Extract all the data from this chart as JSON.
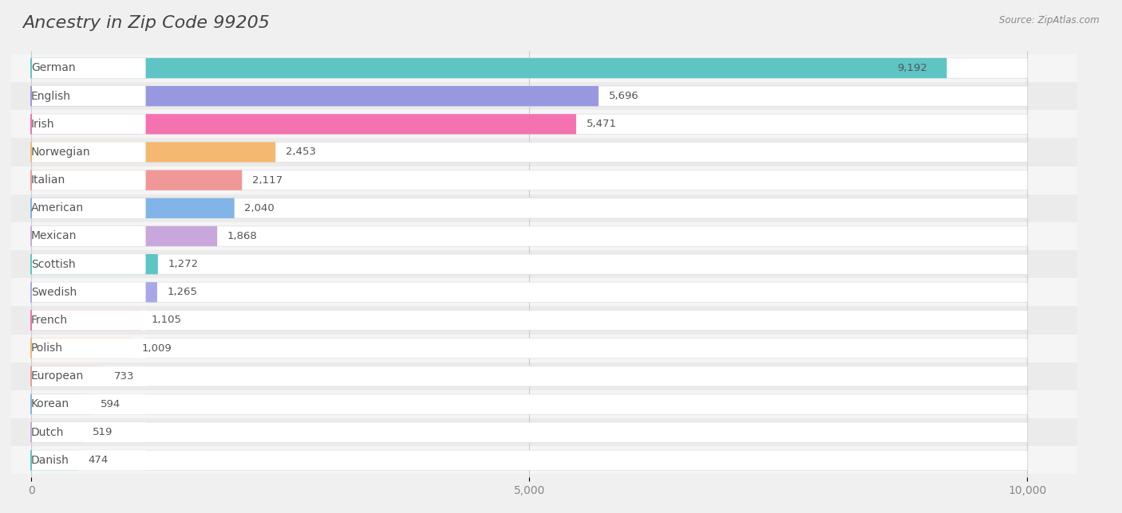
{
  "title": "Ancestry in Zip Code 99205",
  "source": "Source: ZipAtlas.com",
  "categories": [
    "German",
    "English",
    "Irish",
    "Norwegian",
    "Italian",
    "American",
    "Mexican",
    "Scottish",
    "Swedish",
    "French",
    "Polish",
    "European",
    "Korean",
    "Dutch",
    "Danish"
  ],
  "values": [
    9192,
    5696,
    5471,
    2453,
    2117,
    2040,
    1868,
    1272,
    1265,
    1105,
    1009,
    733,
    594,
    519,
    474
  ],
  "bar_colors": [
    "#5ec4c4",
    "#9898e0",
    "#f472b0",
    "#f5b870",
    "#f09898",
    "#82b4e8",
    "#c8a8dc",
    "#5ec4c4",
    "#a8a8e8",
    "#f472b0",
    "#f5b870",
    "#f09898",
    "#82b4e8",
    "#c8a8dc",
    "#5ec4c4"
  ],
  "circle_colors": [
    "#5ec4c4",
    "#9898e0",
    "#f472b0",
    "#f5b870",
    "#f09898",
    "#82b4e8",
    "#c8a8dc",
    "#5ec4c4",
    "#a8a8e8",
    "#f472b0",
    "#f5b870",
    "#f09898",
    "#82b4e8",
    "#c8a8dc",
    "#5ec4c4"
  ],
  "xlim": [
    0,
    10000
  ],
  "xticks": [
    0,
    5000,
    10000
  ],
  "xtick_labels": [
    "0",
    "5,000",
    "10,000"
  ],
  "background_color": "#f0f0f0",
  "bar_background_color": "#ffffff",
  "row_background_even": "#ebebeb",
  "row_background_odd": "#f5f5f5",
  "title_fontsize": 16,
  "label_fontsize": 10,
  "value_fontsize": 9.5
}
